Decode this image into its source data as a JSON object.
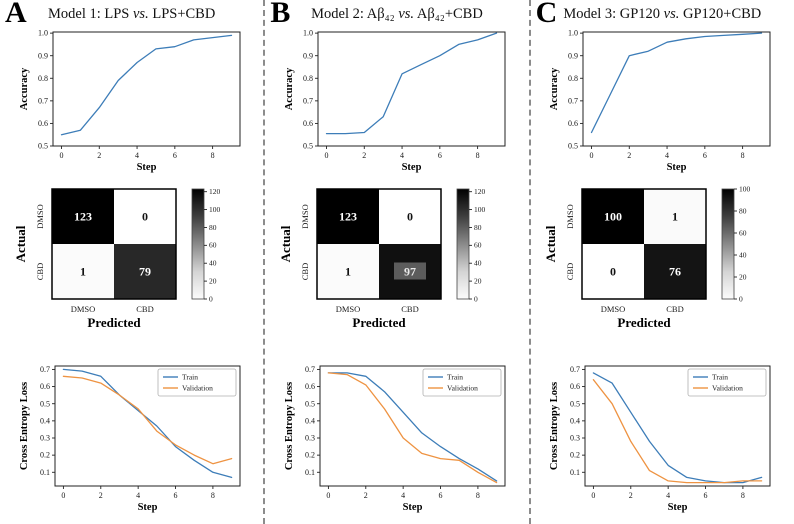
{
  "colors": {
    "train_line": "#3d7db8",
    "validation_line": "#ee9342",
    "heatmap_high": "#000000",
    "heatmap_low": "#ffffff"
  },
  "chart_data": [
    {
      "panel": "A",
      "title": "Model 1: LPS vs. LPS+CBD",
      "accuracy": {
        "type": "line",
        "xlabel": "Step",
        "ylabel": "Accuracy",
        "x": [
          0,
          1,
          2,
          3,
          4,
          5,
          6,
          7,
          8,
          9
        ],
        "values": [
          0.55,
          0.57,
          0.67,
          0.79,
          0.87,
          0.93,
          0.94,
          0.97,
          0.98,
          0.99
        ],
        "color": "#3d7db8",
        "xticks": [
          0,
          2,
          4,
          6,
          8
        ],
        "yticks": [
          0.5,
          0.6,
          0.7,
          0.8,
          0.9,
          1.0
        ],
        "xlim": [
          -0.45,
          9.45
        ],
        "ylim": [
          0.5,
          1.005
        ]
      },
      "confusion": {
        "type": "heatmap",
        "row_axis_label": "Actual",
        "col_axis_label": "Predicted",
        "classes": [
          "DMSO",
          "CBD"
        ],
        "matrix": [
          [
            123,
            0
          ],
          [
            1,
            79
          ]
        ],
        "vmax": 123,
        "colorbar_ticks": [
          0,
          20,
          40,
          60,
          80,
          100,
          120
        ]
      },
      "loss": {
        "type": "line",
        "xlabel": "Step",
        "ylabel": "Cross Entropy Loss",
        "x": [
          0,
          1,
          2,
          3,
          4,
          5,
          6,
          7,
          8,
          9
        ],
        "series": [
          {
            "name": "Train",
            "color": "#3d7db8",
            "values": [
              0.7,
              0.69,
              0.66,
              0.55,
              0.46,
              0.37,
              0.25,
              0.17,
              0.1,
              0.07
            ]
          },
          {
            "name": "Validation",
            "color": "#ee9342",
            "values": [
              0.66,
              0.65,
              0.62,
              0.55,
              0.47,
              0.34,
              0.26,
              0.2,
              0.15,
              0.18
            ]
          }
        ],
        "legend_position": "top-right",
        "xticks": [
          0,
          2,
          4,
          6,
          8
        ],
        "yticks": [
          0.1,
          0.2,
          0.3,
          0.4,
          0.5,
          0.6,
          0.7
        ],
        "xlim": [
          -0.45,
          9.45
        ],
        "ylim": [
          0.02,
          0.72
        ]
      }
    },
    {
      "panel": "B",
      "title": "Model 2: Aβ₄₂ vs. Aβ₄₂+CBD",
      "accuracy": {
        "type": "line",
        "xlabel": "Step",
        "ylabel": "Accuracy",
        "x": [
          0,
          1,
          2,
          3,
          4,
          5,
          6,
          7,
          8,
          9
        ],
        "values": [
          0.555,
          0.555,
          0.56,
          0.63,
          0.82,
          0.86,
          0.9,
          0.95,
          0.97,
          1.0
        ],
        "color": "#3d7db8",
        "xticks": [
          0,
          2,
          4,
          6,
          8
        ],
        "yticks": [
          0.5,
          0.6,
          0.7,
          0.8,
          0.9,
          1.0
        ],
        "xlim": [
          -0.45,
          9.45
        ],
        "ylim": [
          0.5,
          1.005
        ]
      },
      "confusion": {
        "type": "heatmap",
        "row_axis_label": "Actual",
        "col_axis_label": "Predicted",
        "classes": [
          "DMSO",
          "CBD"
        ],
        "matrix": [
          [
            123,
            0
          ],
          [
            1,
            97
          ]
        ],
        "vmax": 123,
        "colorbar_ticks": [
          0,
          20,
          40,
          60,
          80,
          100,
          120
        ],
        "highlight_cell": [
          1,
          1
        ]
      },
      "loss": {
        "type": "line",
        "xlabel": "Step",
        "ylabel": "Cross Entropy Loss",
        "x": [
          0,
          1,
          2,
          3,
          4,
          5,
          6,
          7,
          8,
          9
        ],
        "series": [
          {
            "name": "Train",
            "color": "#3d7db8",
            "values": [
              0.68,
              0.68,
              0.66,
              0.57,
              0.45,
              0.33,
              0.25,
              0.18,
              0.12,
              0.05
            ]
          },
          {
            "name": "Validation",
            "color": "#ee9342",
            "values": [
              0.68,
              0.67,
              0.61,
              0.47,
              0.3,
              0.21,
              0.18,
              0.17,
              0.1,
              0.04
            ]
          }
        ],
        "legend_position": "top-right",
        "xticks": [
          0,
          2,
          4,
          6,
          8
        ],
        "yticks": [
          0.1,
          0.2,
          0.3,
          0.4,
          0.5,
          0.6,
          0.7
        ],
        "xlim": [
          -0.45,
          9.45
        ],
        "ylim": [
          0.02,
          0.72
        ]
      }
    },
    {
      "panel": "C",
      "title": "Model 3: GP120 vs. GP120+CBD",
      "accuracy": {
        "type": "line",
        "xlabel": "Step",
        "ylabel": "Accuracy",
        "x": [
          0,
          1,
          2,
          3,
          4,
          5,
          6,
          7,
          8,
          9
        ],
        "values": [
          0.56,
          0.73,
          0.9,
          0.92,
          0.96,
          0.975,
          0.985,
          0.99,
          0.995,
          1.0
        ],
        "color": "#3d7db8",
        "xticks": [
          0,
          2,
          4,
          6,
          8
        ],
        "yticks": [
          0.5,
          0.6,
          0.7,
          0.8,
          0.9,
          1.0
        ],
        "xlim": [
          -0.45,
          9.45
        ],
        "ylim": [
          0.5,
          1.005
        ]
      },
      "confusion": {
        "type": "heatmap",
        "row_axis_label": "Actual",
        "col_axis_label": "Predicted",
        "classes": [
          "DMSO",
          "CBD"
        ],
        "matrix": [
          [
            100,
            1
          ],
          [
            0,
            76
          ]
        ],
        "vmax": 100,
        "colorbar_ticks": [
          0,
          20,
          40,
          60,
          80,
          100
        ]
      },
      "loss": {
        "type": "line",
        "xlabel": "Step",
        "ylabel": "Cross Entropy Loss",
        "x": [
          0,
          1,
          2,
          3,
          4,
          5,
          6,
          7,
          8,
          9
        ],
        "series": [
          {
            "name": "Train",
            "color": "#3d7db8",
            "values": [
              0.68,
              0.62,
              0.45,
              0.28,
              0.14,
              0.07,
              0.05,
              0.04,
              0.04,
              0.07
            ]
          },
          {
            "name": "Validation",
            "color": "#ee9342",
            "values": [
              0.64,
              0.5,
              0.28,
              0.11,
              0.05,
              0.04,
              0.04,
              0.04,
              0.05,
              0.05
            ]
          }
        ],
        "legend_position": "top-right",
        "xticks": [
          0,
          2,
          4,
          6,
          8
        ],
        "yticks": [
          0.1,
          0.2,
          0.3,
          0.4,
          0.5,
          0.6,
          0.7
        ],
        "xlim": [
          -0.45,
          9.45
        ],
        "ylim": [
          0.02,
          0.72
        ]
      }
    }
  ]
}
